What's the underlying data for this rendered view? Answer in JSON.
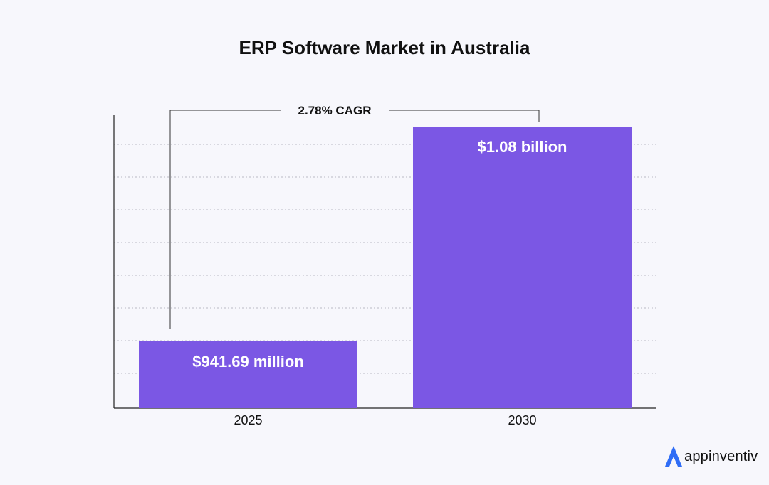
{
  "chart_data": {
    "type": "bar",
    "title": "ERP Software Market in Australia",
    "categories": [
      "2025",
      "2030"
    ],
    "values": [
      941.69,
      1080
    ],
    "value_unit": "million USD",
    "data_labels": [
      "$941.69 million",
      "$1.08 billion"
    ],
    "xlabel": "",
    "ylabel": "",
    "grid": true,
    "bar_color": "#7b57e4",
    "annotation": "2.78% CAGR"
  },
  "brand": {
    "name": "appinventiv",
    "logo_color": "#2f6df6"
  }
}
